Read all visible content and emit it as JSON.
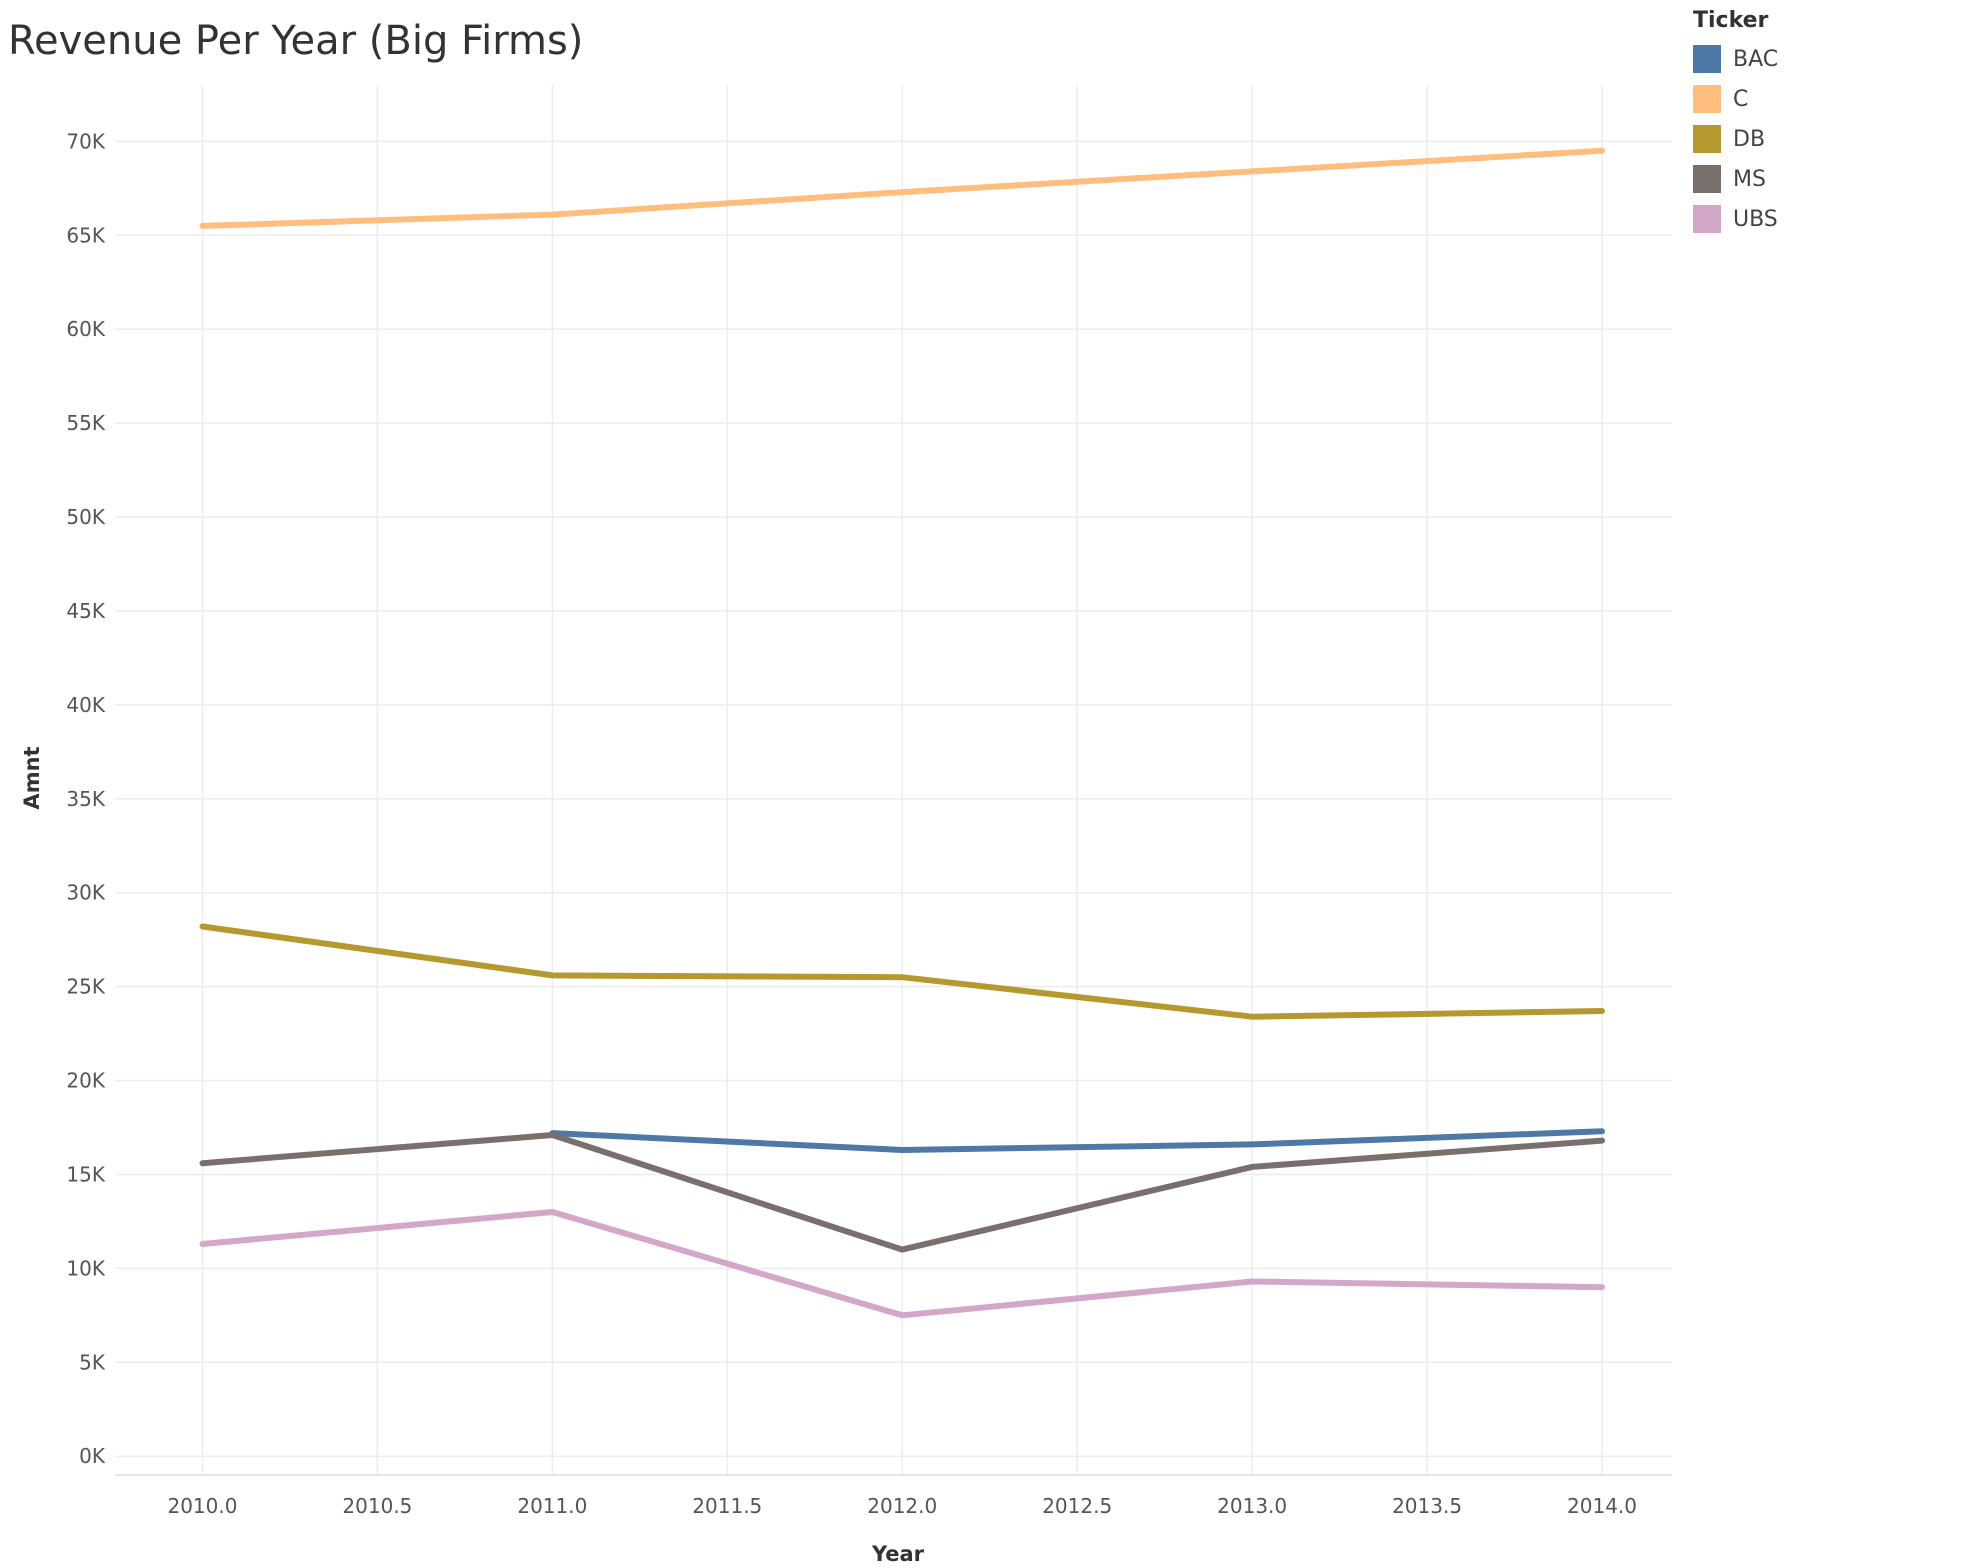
{
  "chart_data": {
    "type": "line",
    "title": "Revenue Per Year (Big Firms)",
    "xlabel": "Year",
    "ylabel": "Amnt",
    "xlim": [
      2010,
      2014
    ],
    "ylim": [
      0,
      70000
    ],
    "x_ticks": [
      "2010.0",
      "2010.5",
      "2011.0",
      "2011.5",
      "2012.0",
      "2012.5",
      "2013.0",
      "2013.5",
      "2014.0"
    ],
    "y_ticks": [
      "0K",
      "5K",
      "10K",
      "15K",
      "20K",
      "25K",
      "30K",
      "35K",
      "40K",
      "45K",
      "50K",
      "55K",
      "60K",
      "65K",
      "70K"
    ],
    "grid": true,
    "legend": {
      "title": "Ticker",
      "placement": "right"
    },
    "series": [
      {
        "name": "BAC",
        "color": "#4e79a7",
        "x": [
          2011,
          2012,
          2013,
          2014
        ],
        "values": [
          17200,
          16300,
          16600,
          17300
        ]
      },
      {
        "name": "C",
        "color": "#ffbe7d",
        "x": [
          2010,
          2011,
          2012,
          2013,
          2014
        ],
        "values": [
          65500,
          66100,
          67300,
          68400,
          69500
        ]
      },
      {
        "name": "DB",
        "color": "#b5992e",
        "x": [
          2010,
          2011,
          2012,
          2013,
          2014
        ],
        "values": [
          28200,
          25600,
          25500,
          23400,
          23700
        ]
      },
      {
        "name": "MS",
        "color": "#79706e",
        "x": [
          2010,
          2011,
          2012,
          2013,
          2014
        ],
        "values": [
          15600,
          17100,
          11000,
          15400,
          16800
        ]
      },
      {
        "name": "UBS",
        "color": "#d4a6c8",
        "x": [
          2010,
          2011,
          2012,
          2013,
          2014
        ],
        "values": [
          11300,
          13000,
          7500,
          9300,
          9000
        ]
      }
    ]
  }
}
